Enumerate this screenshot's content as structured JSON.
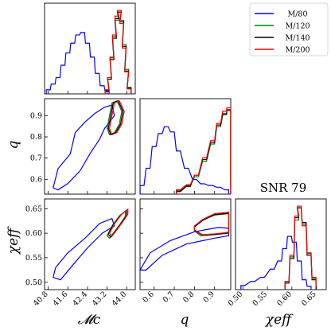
{
  "chart_data": {
    "type": "corner",
    "title": "SNR 79",
    "axis_labels": {
      "mc": "𝓜c",
      "q": "q",
      "chi": "χeff"
    },
    "ticks": {
      "mc": [
        "40.8",
        "41.6",
        "42.4",
        "43.2",
        "44.0"
      ],
      "q": [
        "0.6",
        "0.7",
        "0.8",
        "0.9"
      ],
      "chi": [
        "0.50",
        "0.55",
        "0.60",
        "0.65"
      ]
    },
    "ranges": {
      "mc": [
        40.65,
        44.35
      ],
      "q": [
        0.53,
        0.98
      ],
      "chi": [
        0.485,
        0.67
      ]
    },
    "legend": {
      "position": "top-right"
    },
    "series": [
      {
        "name": "M/80",
        "color": "#0000ff",
        "hist_mc": [
          [
            40.8,
            0.05
          ],
          [
            41.0,
            0.12
          ],
          [
            41.2,
            0.2
          ],
          [
            41.4,
            0.35
          ],
          [
            41.6,
            0.5
          ],
          [
            41.8,
            0.62
          ],
          [
            42.0,
            0.72
          ],
          [
            42.2,
            0.75
          ],
          [
            42.4,
            0.62
          ],
          [
            42.6,
            0.45
          ],
          [
            42.8,
            0.25
          ],
          [
            43.0,
            0.1
          ],
          [
            43.2,
            0.03
          ]
        ],
        "hist_q": [
          [
            0.54,
            0.1
          ],
          [
            0.57,
            0.3
          ],
          [
            0.6,
            0.55
          ],
          [
            0.63,
            0.7
          ],
          [
            0.66,
            0.78
          ],
          [
            0.69,
            0.72
          ],
          [
            0.72,
            0.5
          ],
          [
            0.76,
            0.3
          ],
          [
            0.8,
            0.17
          ],
          [
            0.84,
            0.12
          ],
          [
            0.88,
            0.1
          ],
          [
            0.92,
            0.08
          ],
          [
            0.96,
            0.05
          ]
        ],
        "hist_chi": [
          [
            0.5,
            0.05
          ],
          [
            0.52,
            0.1
          ],
          [
            0.54,
            0.15
          ],
          [
            0.56,
            0.25
          ],
          [
            0.575,
            0.35
          ],
          [
            0.585,
            0.5
          ],
          [
            0.595,
            0.65
          ],
          [
            0.605,
            0.58
          ],
          [
            0.615,
            0.35
          ],
          [
            0.625,
            0.12
          ],
          [
            0.635,
            0.04
          ]
        ],
        "contour_mc_q": [
          [
            41.0,
            0.56
          ],
          [
            41.2,
            0.65
          ],
          [
            41.7,
            0.72
          ],
          [
            41.9,
            0.82
          ],
          [
            42.3,
            0.87
          ],
          [
            42.7,
            0.91
          ],
          [
            43.1,
            0.94
          ],
          [
            43.4,
            0.95
          ],
          [
            43.5,
            0.9
          ],
          [
            43.1,
            0.84
          ],
          [
            42.9,
            0.79
          ],
          [
            42.5,
            0.72
          ],
          [
            42.1,
            0.64
          ],
          [
            41.6,
            0.58
          ],
          [
            41.2,
            0.55
          ]
        ],
        "contour_mc_chi": [
          [
            41.0,
            0.51
          ],
          [
            41.1,
            0.53
          ],
          [
            41.6,
            0.56
          ],
          [
            42.3,
            0.59
          ],
          [
            42.9,
            0.62
          ],
          [
            43.4,
            0.63
          ],
          [
            43.5,
            0.615
          ],
          [
            43.0,
            0.6
          ],
          [
            42.4,
            0.57
          ],
          [
            41.8,
            0.535
          ],
          [
            41.3,
            0.505
          ]
        ],
        "contour_q_chi": [
          [
            0.53,
            0.525
          ],
          [
            0.58,
            0.56
          ],
          [
            0.68,
            0.585
          ],
          [
            0.8,
            0.603
          ],
          [
            0.92,
            0.612
          ],
          [
            0.97,
            0.61
          ],
          [
            0.97,
            0.595
          ],
          [
            0.9,
            0.59
          ],
          [
            0.76,
            0.578
          ],
          [
            0.64,
            0.555
          ],
          [
            0.56,
            0.525
          ]
        ]
      },
      {
        "name": "M/120",
        "color": "#008000",
        "hist_mc": [
          [
            43.2,
            0.05
          ],
          [
            43.3,
            0.2
          ],
          [
            43.4,
            0.45
          ],
          [
            43.5,
            0.7
          ],
          [
            43.6,
            0.9
          ],
          [
            43.7,
            1.0
          ],
          [
            43.8,
            0.9
          ],
          [
            43.9,
            0.6
          ],
          [
            44.0,
            0.3
          ],
          [
            44.1,
            0.08
          ]
        ],
        "hist_q": [
          [
            0.72,
            0.04
          ],
          [
            0.77,
            0.1
          ],
          [
            0.81,
            0.2
          ],
          [
            0.85,
            0.38
          ],
          [
            0.89,
            0.58
          ],
          [
            0.92,
            0.78
          ],
          [
            0.95,
            0.92
          ],
          [
            0.97,
            0.98
          ]
        ],
        "hist_chi": [
          [
            0.59,
            0.1
          ],
          [
            0.6,
            0.4
          ],
          [
            0.61,
            0.85
          ],
          [
            0.615,
            1.0
          ],
          [
            0.625,
            0.8
          ],
          [
            0.635,
            0.45
          ],
          [
            0.645,
            0.15
          ]
        ],
        "contour_mc_q": [
          [
            43.2,
            0.84
          ],
          [
            43.3,
            0.9
          ],
          [
            43.4,
            0.96
          ],
          [
            43.6,
            0.97
          ],
          [
            43.8,
            0.92
          ],
          [
            43.7,
            0.86
          ],
          [
            43.5,
            0.82
          ],
          [
            43.3,
            0.81
          ]
        ],
        "contour_mc_chi": [
          [
            43.2,
            0.595
          ],
          [
            43.4,
            0.615
          ],
          [
            43.7,
            0.635
          ],
          [
            43.95,
            0.645
          ],
          [
            43.95,
            0.635
          ],
          [
            43.75,
            0.62
          ],
          [
            43.5,
            0.603
          ],
          [
            43.3,
            0.59
          ]
        ],
        "contour_q_chi": [
          [
            0.8,
            0.605
          ],
          [
            0.83,
            0.595
          ],
          [
            0.9,
            0.597
          ],
          [
            0.97,
            0.6
          ],
          [
            0.97,
            0.64
          ],
          [
            0.9,
            0.637
          ],
          [
            0.83,
            0.625
          ],
          [
            0.8,
            0.612
          ]
        ]
      },
      {
        "name": "M/140",
        "color": "#000000",
        "hist_mc": [
          [
            43.2,
            0.04
          ],
          [
            43.3,
            0.18
          ],
          [
            43.4,
            0.42
          ],
          [
            43.5,
            0.68
          ],
          [
            43.6,
            0.92
          ],
          [
            43.7,
            1.0
          ],
          [
            43.8,
            0.88
          ],
          [
            43.9,
            0.58
          ],
          [
            44.0,
            0.28
          ],
          [
            44.1,
            0.07
          ]
        ],
        "hist_q": [
          [
            0.72,
            0.03
          ],
          [
            0.77,
            0.09
          ],
          [
            0.81,
            0.22
          ],
          [
            0.85,
            0.4
          ],
          [
            0.89,
            0.6
          ],
          [
            0.92,
            0.8
          ],
          [
            0.95,
            0.93
          ],
          [
            0.97,
            0.97
          ]
        ],
        "hist_chi": [
          [
            0.59,
            0.08
          ],
          [
            0.6,
            0.38
          ],
          [
            0.61,
            0.88
          ],
          [
            0.615,
            1.0
          ],
          [
            0.625,
            0.82
          ],
          [
            0.635,
            0.42
          ],
          [
            0.645,
            0.12
          ]
        ],
        "contour_mc_q": [
          [
            43.25,
            0.84
          ],
          [
            43.35,
            0.9
          ],
          [
            43.45,
            0.96
          ],
          [
            43.65,
            0.97
          ],
          [
            43.85,
            0.92
          ],
          [
            43.75,
            0.86
          ],
          [
            43.55,
            0.82
          ],
          [
            43.35,
            0.81
          ]
        ],
        "contour_mc_chi": [
          [
            43.25,
            0.598
          ],
          [
            43.45,
            0.617
          ],
          [
            43.75,
            0.637
          ],
          [
            44.0,
            0.647
          ],
          [
            44.0,
            0.637
          ],
          [
            43.8,
            0.622
          ],
          [
            43.55,
            0.605
          ],
          [
            43.35,
            0.592
          ]
        ],
        "contour_q_chi": [
          [
            0.8,
            0.606
          ],
          [
            0.84,
            0.596
          ],
          [
            0.91,
            0.598
          ],
          [
            0.97,
            0.601
          ],
          [
            0.97,
            0.641
          ],
          [
            0.9,
            0.638
          ],
          [
            0.84,
            0.626
          ],
          [
            0.8,
            0.613
          ]
        ]
      },
      {
        "name": "M/200",
        "color": "#ff0000",
        "hist_mc": [
          [
            43.2,
            0.05
          ],
          [
            43.3,
            0.2
          ],
          [
            43.4,
            0.44
          ],
          [
            43.5,
            0.72
          ],
          [
            43.6,
            0.95
          ],
          [
            43.7,
            1.02
          ],
          [
            43.8,
            0.86
          ],
          [
            43.9,
            0.56
          ],
          [
            44.0,
            0.27
          ],
          [
            44.1,
            0.06
          ]
        ],
        "hist_q": [
          [
            0.72,
            0.05
          ],
          [
            0.77,
            0.11
          ],
          [
            0.81,
            0.22
          ],
          [
            0.85,
            0.42
          ],
          [
            0.89,
            0.62
          ],
          [
            0.92,
            0.82
          ],
          [
            0.95,
            0.96
          ],
          [
            0.97,
            1.0
          ]
        ],
        "hist_chi": [
          [
            0.59,
            0.1
          ],
          [
            0.6,
            0.42
          ],
          [
            0.61,
            0.9
          ],
          [
            0.615,
            1.02
          ],
          [
            0.625,
            0.78
          ],
          [
            0.635,
            0.44
          ],
          [
            0.645,
            0.14
          ]
        ],
        "contour_mc_q": [
          [
            43.3,
            0.84
          ],
          [
            43.4,
            0.9
          ],
          [
            43.5,
            0.96
          ],
          [
            43.7,
            0.97
          ],
          [
            43.9,
            0.92
          ],
          [
            43.8,
            0.86
          ],
          [
            43.6,
            0.82
          ],
          [
            43.4,
            0.81
          ]
        ],
        "contour_mc_chi": [
          [
            43.3,
            0.6
          ],
          [
            43.5,
            0.619
          ],
          [
            43.8,
            0.639
          ],
          [
            44.05,
            0.649
          ],
          [
            44.05,
            0.639
          ],
          [
            43.85,
            0.624
          ],
          [
            43.6,
            0.607
          ],
          [
            43.4,
            0.594
          ]
        ],
        "contour_q_chi": [
          [
            0.8,
            0.607
          ],
          [
            0.84,
            0.597
          ],
          [
            0.91,
            0.599
          ],
          [
            0.97,
            0.602
          ],
          [
            0.97,
            0.643
          ],
          [
            0.9,
            0.64
          ],
          [
            0.84,
            0.628
          ],
          [
            0.8,
            0.615
          ]
        ]
      }
    ]
  }
}
